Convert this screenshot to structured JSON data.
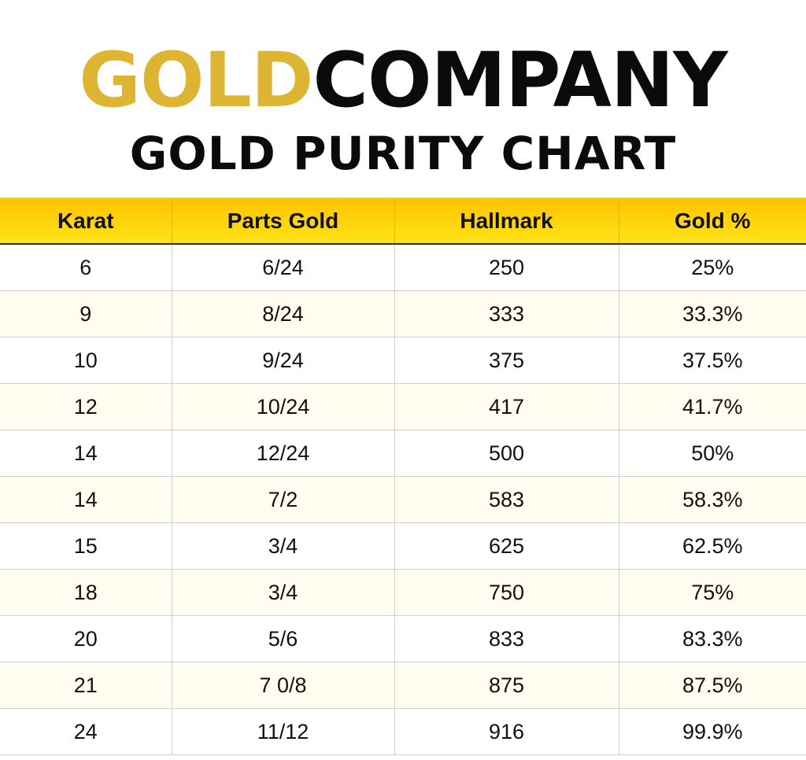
{
  "header": {
    "brand_gold": "GOLD",
    "brand_company": "COMPANY",
    "subtitle": "GOLD PURITY CHART"
  },
  "colors": {
    "brand_gold": "#DDB532",
    "brand_black": "#0B0B0B",
    "header_gradient_top": "#FFC300",
    "header_gradient_bottom": "#FFE418",
    "alt_row": "#FFFDF0",
    "grid": "#CFCFCF"
  },
  "table": {
    "columns": [
      "Karat",
      "Parts Gold",
      "Hallmark",
      "Gold %"
    ],
    "rows": [
      [
        "6",
        "6/24",
        "250",
        "25%"
      ],
      [
        "9",
        "8/24",
        "333",
        "33.3%"
      ],
      [
        "10",
        "9/24",
        "375",
        "37.5%"
      ],
      [
        "12",
        "10/24",
        "417",
        "41.7%"
      ],
      [
        "14",
        "12/24",
        "500",
        "50%"
      ],
      [
        "14",
        "7/2",
        "583",
        "58.3%"
      ],
      [
        "15",
        "3/4",
        "625",
        "62.5%"
      ],
      [
        "18",
        "3/4",
        "750",
        "75%"
      ],
      [
        "20",
        "5/6",
        "833",
        "83.3%"
      ],
      [
        "21",
        "7 0/8",
        "875",
        "87.5%"
      ],
      [
        "24",
        "11/12",
        "916",
        "99.9%"
      ]
    ]
  },
  "chart_data": {
    "type": "table",
    "title": "GOLD PURITY CHART",
    "subtitle": "GOLDCOMPANY",
    "columns": [
      "Karat",
      "Parts Gold",
      "Hallmark",
      "Gold %"
    ],
    "rows": [
      [
        "6",
        "6/24",
        "250",
        "25%"
      ],
      [
        "9",
        "8/24",
        "333",
        "33.3%"
      ],
      [
        "10",
        "9/24",
        "375",
        "37.5%"
      ],
      [
        "12",
        "10/24",
        "417",
        "41.7%"
      ],
      [
        "14",
        "12/24",
        "500",
        "50%"
      ],
      [
        "14",
        "7/2",
        "583",
        "58.3%"
      ],
      [
        "15",
        "3/4",
        "625",
        "62.5%"
      ],
      [
        "18",
        "3/4",
        "750",
        "75%"
      ],
      [
        "20",
        "5/6",
        "833",
        "83.3%"
      ],
      [
        "21",
        "7 0/8",
        "875",
        "87.5%"
      ],
      [
        "24",
        "11/12",
        "916",
        "99.9%"
      ]
    ]
  }
}
